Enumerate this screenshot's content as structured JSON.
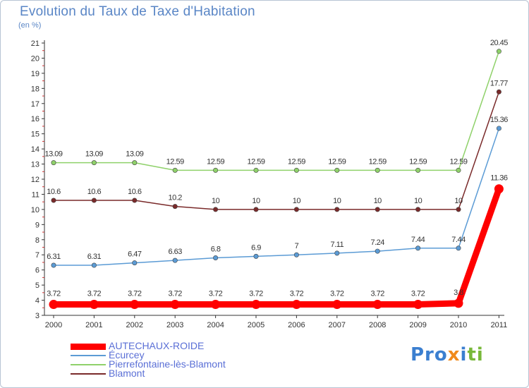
{
  "title": "Evolution du Taux de Taxe d'Habitation",
  "subtitle": "(en %)",
  "logo": {
    "text": "Proxiti"
  },
  "chart_data": {
    "type": "line",
    "title": "Evolution du Taux de Taxe d'Habitation",
    "subtitle": "(en %)",
    "xlabel": "",
    "ylabel": "",
    "categories": [
      "2000",
      "2001",
      "2002",
      "2003",
      "2004",
      "2005",
      "2006",
      "2007",
      "2008",
      "2009",
      "2010",
      "2011"
    ],
    "ylim": [
      3,
      21
    ],
    "yticks": [
      3,
      4,
      5,
      6,
      7,
      8,
      9,
      10,
      11,
      12,
      13,
      14,
      15,
      16,
      17,
      18,
      19,
      20,
      21
    ],
    "grid": false,
    "legend_position": "bottom-left",
    "series": [
      {
        "name": "AUTECHAUX-ROIDE",
        "color": "#ff0000",
        "bold": true,
        "values": [
          3.72,
          3.72,
          3.72,
          3.72,
          3.72,
          3.72,
          3.72,
          3.72,
          3.72,
          3.72,
          3.8,
          11.36
        ],
        "labels": [
          "3.72",
          "3.72",
          "3.72",
          "3.72",
          "3.72",
          "3.72",
          "3.72",
          "3.72",
          "3.72",
          "3.72",
          "3.8",
          "11.36"
        ]
      },
      {
        "name": "Écurcey",
        "color": "#5b9bd5",
        "bold": false,
        "values": [
          6.31,
          6.31,
          6.47,
          6.63,
          6.8,
          6.9,
          7,
          7.11,
          7.24,
          7.44,
          7.44,
          15.36
        ],
        "labels": [
          "6.31",
          "6.31",
          "6.47",
          "6.63",
          "6.8",
          "6.9",
          "7",
          "7.11",
          "7.24",
          "7.44",
          "7.44",
          "15.36"
        ]
      },
      {
        "name": "Pierrefontaine-lès-Blamont",
        "color": "#8fd16a",
        "bold": false,
        "values": [
          13.09,
          13.09,
          13.09,
          12.59,
          12.59,
          12.59,
          12.59,
          12.59,
          12.59,
          12.59,
          12.59,
          20.45
        ],
        "labels": [
          "13.09",
          "13.09",
          "13.09",
          "12.59",
          "12.59",
          "12.59",
          "12.59",
          "12.59",
          "12.59",
          "12.59",
          "12.59",
          "20.45"
        ]
      },
      {
        "name": "Blamont",
        "color": "#7a2a2a",
        "bold": false,
        "values": [
          10.6,
          10.6,
          10.6,
          10.2,
          10,
          10,
          10,
          10,
          10,
          10,
          10,
          17.77
        ],
        "labels": [
          "10.6",
          "10.6",
          "10.6",
          "10.2",
          "10",
          "10",
          "10",
          "10",
          "10",
          "10",
          "10",
          "17.77"
        ]
      }
    ]
  }
}
